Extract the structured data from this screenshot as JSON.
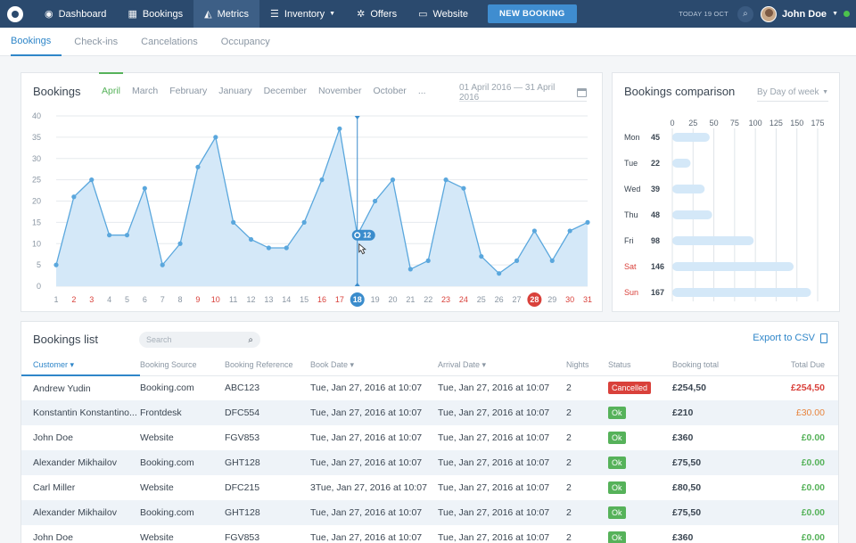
{
  "nav": {
    "items": [
      {
        "label": "Dashboard",
        "icon": "dashboard-icon"
      },
      {
        "label": "Bookings",
        "icon": "grid-icon"
      },
      {
        "label": "Metrics",
        "icon": "chart-icon"
      },
      {
        "label": "Inventory",
        "icon": "database-icon"
      },
      {
        "label": "Offers",
        "icon": "gear-icon"
      },
      {
        "label": "Website",
        "icon": "monitor-icon"
      }
    ],
    "new_booking": "NEW BOOKING",
    "today": "TODAY 19 OCT",
    "user": "John Doe"
  },
  "subnav": {
    "tabs": [
      "Bookings",
      "Check-ins",
      "Cancelations",
      "Occupancy"
    ]
  },
  "bookings_chart": {
    "title": "Bookings",
    "months": [
      "April",
      "March",
      "February",
      "January",
      "December",
      "November",
      "October",
      "..."
    ],
    "date_range": "01 April 2016 — 31 April 2016",
    "tooltip": "12"
  },
  "comparison": {
    "title": "Bookings comparison",
    "select": "By Day of week"
  },
  "chart_data": [
    {
      "type": "area",
      "x": [
        1,
        2,
        3,
        4,
        5,
        6,
        7,
        8,
        9,
        10,
        11,
        12,
        13,
        14,
        15,
        16,
        17,
        18,
        19,
        20,
        21,
        22,
        23,
        24,
        25,
        26,
        27,
        28,
        29,
        30,
        31
      ],
      "y": [
        5,
        21,
        25,
        12,
        12,
        23,
        5,
        10,
        28,
        35,
        15,
        11,
        9,
        9,
        15,
        25,
        37,
        12,
        20,
        25,
        4,
        6,
        25,
        23,
        7,
        3,
        6,
        13,
        6,
        13,
        15
      ],
      "ylim": [
        0,
        40
      ],
      "yticks": [
        0,
        5,
        10,
        15,
        20,
        25,
        30,
        35,
        40
      ],
      "highlight_x": 18,
      "weekend_x": [
        2,
        3,
        9,
        10,
        16,
        17,
        23,
        24,
        28,
        30,
        31
      ],
      "circled_x": 28,
      "color": "#5aa7dd"
    },
    {
      "type": "bar",
      "orientation": "horizontal",
      "categories": [
        "Mon",
        "Tue",
        "Wed",
        "Thu",
        "Fri",
        "Sat",
        "Sun"
      ],
      "values": [
        45,
        22,
        39,
        48,
        98,
        146,
        167
      ],
      "xlim": [
        0,
        175
      ],
      "xticks": [
        0,
        25,
        50,
        75,
        100,
        125,
        150,
        175
      ],
      "weekend_categories": [
        "Sat",
        "Sun"
      ]
    }
  ],
  "list": {
    "title": "Bookings list",
    "search_placeholder": "Search",
    "export": "Export to CSV",
    "columns": [
      "Customer",
      "Booking Source",
      "Booking Reference",
      "Book Date",
      "Arrival Date",
      "Nights",
      "Status",
      "Booking total",
      "Total Due"
    ],
    "rows": [
      {
        "customer": "Andrew Yudin",
        "source": "Booking.com",
        "ref": "ABC123",
        "book": "Tue, Jan 27, 2016 at 10:07",
        "arrival": "Tue, Jan 27, 2016 at 10:07",
        "nights": "2",
        "status": "Cancelled",
        "total": "£254,50",
        "due": "£254,50"
      },
      {
        "customer": "Konstantin Konstantino...",
        "source": "Frontdesk",
        "ref": "DFC554",
        "book": "Tue, Jan 27, 2016 at 10:07",
        "arrival": "Tue, Jan 27, 2016 at 10:07",
        "nights": "2",
        "status": "Ok",
        "total": "£210",
        "due": "£30.00"
      },
      {
        "customer": "John Doe",
        "source": "Website",
        "ref": "FGV853",
        "book": "Tue, Jan 27, 2016 at 10:07",
        "arrival": "Tue, Jan 27, 2016 at 10:07",
        "nights": "2",
        "status": "Ok",
        "total": "£360",
        "due": "£0.00"
      },
      {
        "customer": "Alexander Mikhailov",
        "source": "Booking.com",
        "ref": "GHT128",
        "book": "Tue, Jan 27, 2016 at 10:07",
        "arrival": "Tue, Jan 27, 2016 at 10:07",
        "nights": "2",
        "status": "Ok",
        "total": "£75,50",
        "due": "£0.00"
      },
      {
        "customer": "Carl Miller",
        "source": "Website",
        "ref": "DFC215",
        "book": "3Tue, Jan 27, 2016 at 10:07",
        "arrival": "Tue, Jan 27, 2016 at 10:07",
        "nights": "2",
        "status": "Ok",
        "total": "£80,50",
        "due": "£0.00"
      },
      {
        "customer": "Alexander Mikhailov",
        "source": "Booking.com",
        "ref": "GHT128",
        "book": "Tue, Jan 27, 2016 at 10:07",
        "arrival": "Tue, Jan 27, 2016 at 10:07",
        "nights": "2",
        "status": "Ok",
        "total": "£75,50",
        "due": "£0.00"
      },
      {
        "customer": "John Doe",
        "source": "Website",
        "ref": "FGV853",
        "book": "Tue, Jan 27, 2016 at 10:07",
        "arrival": "Tue, Jan 27, 2016 at 10:07",
        "nights": "2",
        "status": "Ok",
        "total": "£360",
        "due": "£0.00"
      }
    ]
  },
  "colors": {
    "nav_bg": "#2b4a6e",
    "accent": "#2f86c9",
    "active_month": "#56b25a",
    "weekend": "#d9413b",
    "ok": "#56b25a",
    "cancelled": "#d9413b"
  }
}
